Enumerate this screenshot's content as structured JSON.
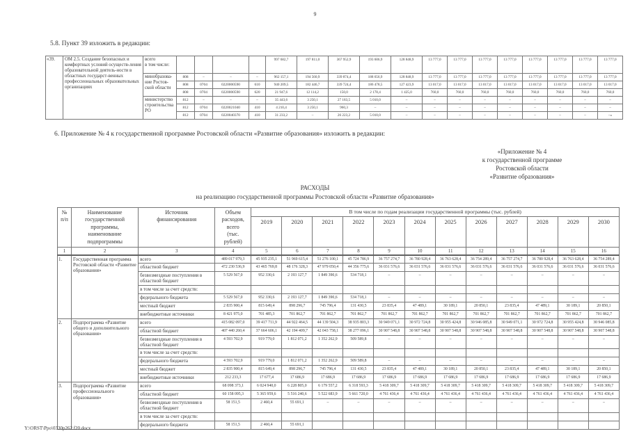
{
  "page": {
    "number": "9",
    "footer_path": "Y:\\ORST\\Ppo\\0330p262.f20.docx"
  },
  "section_5_8": {
    "heading": "5.8. Пункт 39 изложить в редакции:"
  },
  "punkt39_table": {
    "row_number": "«39.",
    "activity": "ОМ 2.5. Создание безопасных и комфортных условий осуществ-ления образовательной деятель-ности в областных государст-венных профессиональных образовательных организациях",
    "first_row": {
      "label": "всего\nв том числе:",
      "values": [
        "997 682,7",
        "197 811,0",
        "367 952,9",
        "193 606,9",
        "128 848,9",
        "13 777,0",
        "13 777,0",
        "13 777,0",
        "13 777,0",
        "13 777,0",
        "13 777,0",
        "13 777,0",
        "13 777,0"
      ]
    },
    "groups": [
      {
        "label": "минобразова-\nние Ростов-\nской области",
        "rows": [
          {
            "codes": [
              "808",
              "–",
              "–",
              "–"
            ],
            "values": [
              "962 157,1",
              "194 560,9",
              "339 874,4",
              "188 656,9",
              "128 848,9",
              "13 777,0",
              "13 777,0",
              "13 777,0",
              "13 777,0",
              "13 777,0",
              "13 777,0",
              "13 777,0",
              "13 777,0"
            ]
          },
          {
            "codes": [
              "808",
              "0704",
              "0220000590",
              "610"
            ],
            "values": [
              "940 209,5",
              "182 446,7",
              "339 724,4",
              "186 478,5",
              "127 423,9",
              "13 017,0",
              "13 017,0",
              "13 017,0",
              "13 017,0",
              "13 017,0",
              "13 017,0",
              "13 017,0",
              "13 017,0"
            ]
          },
          {
            "codes": [
              "808",
              "0704",
              "0220000590",
              "620"
            ],
            "values": [
              "21 947,6",
              "12 114,2",
              "150,0",
              "2 178,4",
              "1 425,0",
              "760,0",
              "760,0",
              "760,0",
              "760,0",
              "760,0",
              "760,0",
              "760,0",
              "760,0"
            ]
          }
        ]
      },
      {
        "label": "министерство\nстроительства\nРО",
        "rows": [
          {
            "codes": [
              "812",
              "–",
              "–",
              "–"
            ],
            "values": [
              "35 443,6",
              "3 250,1",
              "27 183,5",
              "5 010,0",
              "–",
              "–",
              "–",
              "–",
              "–",
              "–",
              "–",
              "–",
              "–"
            ]
          },
          {
            "codes": [
              "812",
              "0704",
              "0220021040",
              "410"
            ],
            "values": [
              "4 210,4",
              "3 250,1",
              "960,3",
              "–",
              "–",
              "–",
              "–",
              "–",
              "–",
              "–",
              "–",
              "–",
              "–"
            ]
          },
          {
            "codes": [
              "812",
              "0704",
              "0220040370",
              "410"
            ],
            "values": [
              "31 233,2",
              "–",
              "26 223,2",
              "5 010,0",
              "–",
              "–",
              "–",
              "–",
              "–",
              "–",
              "–",
              "–",
              "–»"
            ]
          }
        ]
      }
    ]
  },
  "section_6": {
    "heading": "6. Приложение № 4 к государственной программе Ростовской области «Развитие образования» изложить в редакции:"
  },
  "appendix_reference": {
    "lines": [
      "«Приложение № 4",
      "к государственной программе",
      "Ростовской области",
      "«Развитие образования»"
    ]
  },
  "expenses_title": {
    "line1": "РАСХОДЫ",
    "line2": "на реализацию государственной программы Ростовской области «Развитие образования»"
  },
  "expenses_table": {
    "headers": {
      "num": "№\nп/п",
      "name": "Наименование\nгосударственной\nпрограммы,\nнаименование\nподпрограммы",
      "source": "Источник\nфинансирования",
      "volume": "Объем\nрасходов,\nвсего\n(тыс.\nрублей)",
      "years_span": "В том числе по годам реализации государственной программы (тыс. рублей)",
      "years": [
        "2019",
        "2020",
        "2021",
        "2022",
        "2023",
        "2024",
        "2025",
        "2026",
        "2027",
        "2028",
        "2029",
        "2030"
      ],
      "col_numbers": [
        "1",
        "2",
        "3",
        "4",
        "5",
        "6",
        "7",
        "8",
        "9",
        "10",
        "11",
        "12",
        "13",
        "14",
        "15",
        "16"
      ]
    },
    "rows": [
      {
        "num": "1.",
        "name": "Государственная программа Ростовской области «Развитие образования»",
        "sources": [
          {
            "source": "всего",
            "values": [
              "489 017 979,3",
              "45 935 235,1",
              "51 969 615,4",
              "51 276 100,1",
              "45 724 786,9",
              "36 757 274,7",
              "36 780 928,4",
              "36 763 628,4",
              "36 754 289,4",
              "36 757 274,7",
              "36 780 928,4",
              "36 763 628,4",
              "36 754 289,4"
            ]
          },
          {
            "source": "областной бюджет",
            "values": [
              "472 230 536,9",
              "43 465 769,8",
              "48 176 328,3",
              "47 979 050,4",
              "44 356 775,6",
              "36 031 576,6",
              "36 031 576,6",
              "36 031 576,6",
              "36 031 576,6",
              "36 031 576,6",
              "36 031 576,6",
              "36 031 576,6",
              "36 031 576,6"
            ]
          },
          {
            "source": "безвозмездные поступления в областной бюджет",
            "values": [
              "5 529 567,0",
              "952 330,6",
              "2 193 127,7",
              "1 849 390,6",
              "534 718,1",
              "–",
              "–",
              "–",
              "–",
              "–",
              "–",
              "–",
              "–"
            ]
          },
          {
            "source": "в том числе за счет средств:",
            "values": []
          },
          {
            "source": "федерального бюджета",
            "values": [
              "5 529 567,0",
              "952 330,6",
              "2 193 127,7",
              "1 849 390,6",
              "534 718,1",
              "–",
              "–",
              "–",
              "–",
              "–",
              "–",
              "–",
              "–"
            ]
          },
          {
            "source": "местный бюджет",
            "values": [
              "2 835 900,4",
              "815 649,4",
              "898 296,7",
              "745 796,4",
              "131 430,5",
              "23 835,4",
              "47 489,1",
              "30 189,1",
              "20 850,1",
              "23 835,4",
              "47 489,1",
              "30 189,1",
              "20 850,1"
            ]
          },
          {
            "source": "внебюджетные источники",
            "values": [
              "8 421 975,0",
              "701 485,3",
              "701 862,7",
              "701 862,7",
              "701 862,7",
              "701 862,7",
              "701 862,7",
              "701 862,7",
              "701 862,7",
              "701 862,7",
              "701 862,7",
              "701 862,7",
              "701 862,7"
            ]
          }
        ]
      },
      {
        "num": "2.",
        "name": "Подпрограмма «Развитие общего и дополнительного образования»",
        "sources": [
          {
            "source": "всего",
            "values": [
              "415 082 097,0",
              "39 417 711,9",
              "44 922 464,5",
              "44 139 504,3",
              "38 935 803,3",
              "30 949 071,1",
              "30 972 724,8",
              "30 955 424,8",
              "30 946 085,8",
              "30 949 071,1",
              "30 972 724,8",
              "30 955 424,8",
              "30 946 085,8"
            ]
          },
          {
            "source": "областной бюджет",
            "values": [
              "407 440 260,4",
              "37 664 606,1",
              "42 194 409,7",
              "42 043 758,1",
              "38 277 096,1",
              "30 907 548,8",
              "30 907 548,8",
              "30 907 548,8",
              "30 907 548,8",
              "30 907 548,8",
              "30 907 548,8",
              "30 907 548,8",
              "30 907 548,8"
            ]
          },
          {
            "source": "безвозмездные поступления в областной бюджет",
            "values": [
              "4 593 702,9",
              "919 779,0",
              "1 812 071,2",
              "1 352 262,9",
              "509 589,8",
              "–",
              "–",
              "–",
              "–",
              "–",
              "–",
              "–",
              "–"
            ]
          },
          {
            "source": "в том числе за счет средств:",
            "values": []
          },
          {
            "source": "федерального бюджета",
            "values": [
              "4 593 702,9",
              "919 779,0",
              "1 812 071,2",
              "1 352 262,9",
              "509 589,8",
              "–",
              "–",
              "–",
              "–",
              "–",
              "–",
              "–",
              "–"
            ]
          },
          {
            "source": "местный бюджет",
            "values": [
              "2 835 900,4",
              "815 649,4",
              "898 296,7",
              "745 796,4",
              "131 430,5",
              "23 835,4",
              "47 489,1",
              "30 189,1",
              "20 850,1",
              "23 835,4",
              "47 489,1",
              "30 189,1",
              "20 850,1"
            ]
          },
          {
            "source": "внебюджетные источники",
            "values": [
              "212 233,3",
              "17 677,4",
              "17 686,9",
              "17 686,9",
              "17 686,9",
              "17 686,9",
              "17 686,9",
              "17 686,9",
              "17 686,9",
              "17 686,9",
              "17 686,9",
              "17 686,9",
              "17 686,9"
            ]
          }
        ]
      },
      {
        "num": "3.",
        "name": "Подпрограмма «Развитие профессионального образования»",
        "sources": [
          {
            "source": "всего",
            "values": [
              "68 098 373,1",
              "6 024 940,0",
              "6 228 805,0",
              "6 179 557,2",
              "6 318 593,3",
              "5 418 309,7",
              "5 418 309,7",
              "5 418 309,7",
              "5 418 309,7",
              "5 418 309,7",
              "5 418 309,7",
              "5 418 309,7",
              "5 418 309,7"
            ]
          },
          {
            "source": "областной бюджет",
            "values": [
              "60 158 095,3",
              "5 365 959,6",
              "5 516 240,6",
              "5 522 683,9",
              "5 661 720,0",
              "4 761 436,4",
              "4 761 436,4",
              "4 761 436,4",
              "4 761 436,4",
              "4 761 436,4",
              "4 761 436,4",
              "4 761 436,4",
              "4 761 436,4"
            ]
          },
          {
            "source": "безвозмездные поступления в областной бюджет",
            "values": [
              "58 151,5",
              "2 460,4",
              "55 691,1",
              "–",
              "–",
              "–",
              "–",
              "–",
              "–",
              "–",
              "–",
              "–",
              "–"
            ]
          },
          {
            "source": "в том числе за счет средств:",
            "values": []
          },
          {
            "source": "федерального бюджета",
            "values": [
              "58 151,5",
              "2 460,4",
              "55 691,1"
            ]
          }
        ]
      }
    ]
  }
}
